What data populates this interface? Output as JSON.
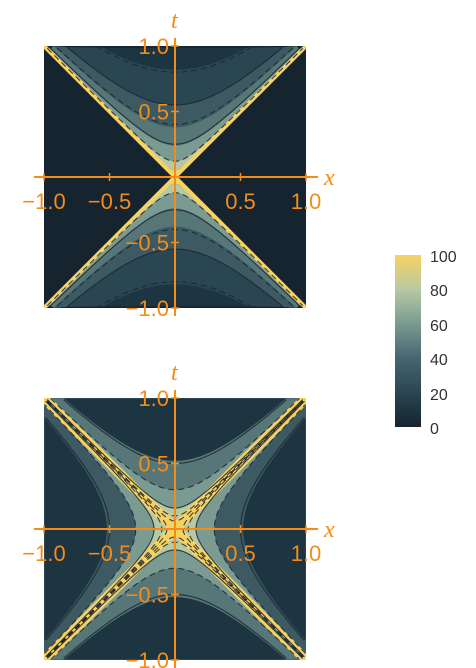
{
  "colors": {
    "axis": "#F28C1B",
    "background": "#ffffff",
    "contour_line": "#1b2530",
    "legend_text": "#333333",
    "colormap": [
      "#162430",
      "#1d3441",
      "#2a4651",
      "#3d5a63",
      "#577677",
      "#7a9a92",
      "#b7c9a3",
      "#f0d57a",
      "#f6d262"
    ]
  },
  "chart_data": [
    {
      "type": "contour",
      "panel": "top",
      "xlabel": "x",
      "ylabel": "t",
      "xlim": [
        -1.0,
        1.0
      ],
      "ylim": [
        -1.0,
        1.0
      ],
      "xticks": [
        "−1.0",
        "−0.5",
        "0.5",
        "1.0"
      ],
      "yticks": [
        "1.0",
        "0.5",
        "−0.5",
        "−1.0"
      ],
      "region": "timelike only (|t| > |x|); spacelike region at minimum",
      "peak": "light cone t = ±x",
      "contour_lines": "solid and dashed hyperbolae t² − x² = const"
    },
    {
      "type": "contour",
      "panel": "bottom",
      "xlabel": "x",
      "ylabel": "t",
      "xlim": [
        -1.0,
        1.0
      ],
      "ylim": [
        -1.0,
        1.0
      ],
      "xticks": [
        "−1.0",
        "−0.5",
        "0.5",
        "1.0"
      ],
      "yticks": [
        "1.0",
        "0.5",
        "−0.5",
        "−1.0"
      ],
      "region": "timelike and spacelike",
      "peak": "light cone t = ±x",
      "contour_lines": "solid and dashed hyperbolae on both sides of the light cone"
    }
  ],
  "legend": {
    "type": "colorbar",
    "min": 0,
    "max": 100,
    "ticks": [
      "100",
      "80",
      "60",
      "40",
      "20",
      "0"
    ]
  }
}
